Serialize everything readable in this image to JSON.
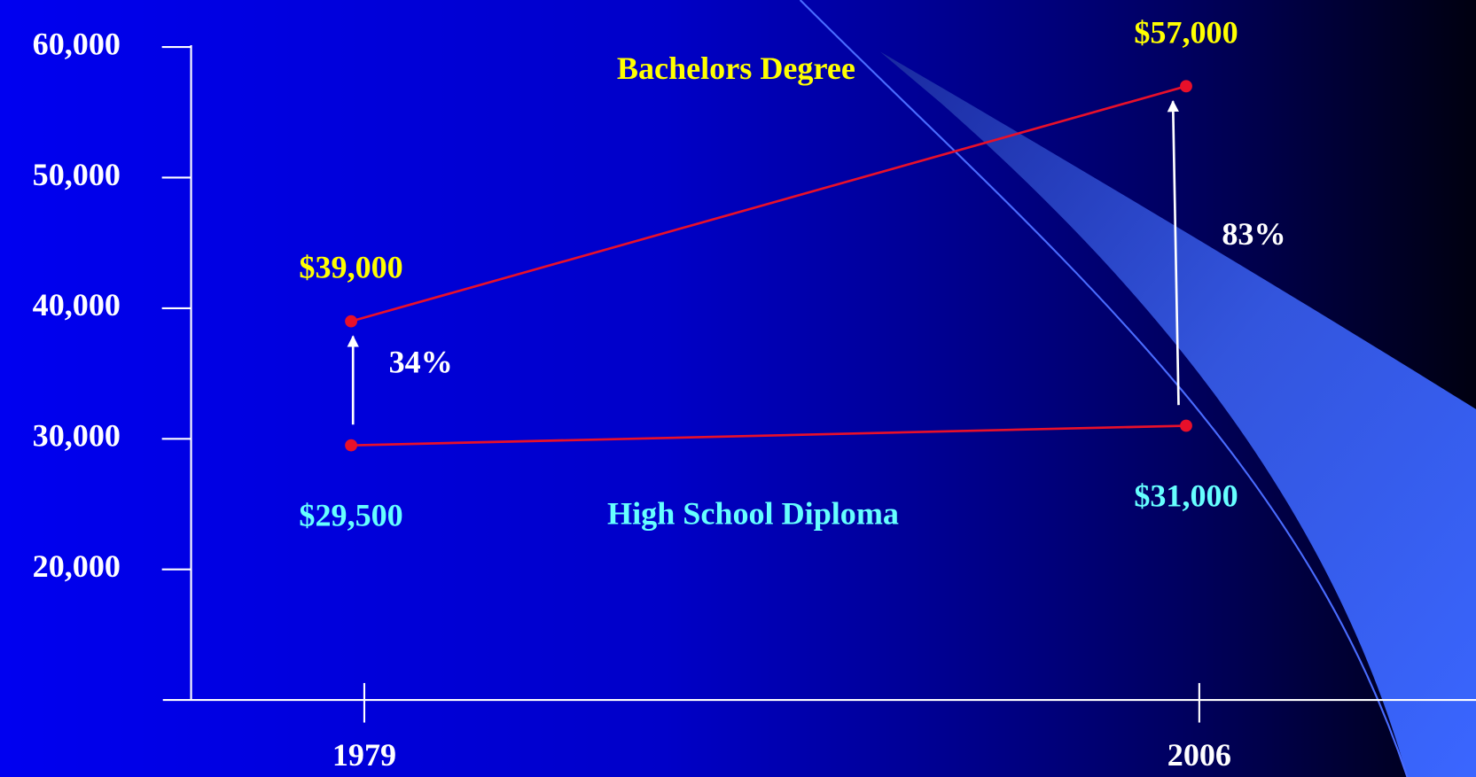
{
  "chart_data": {
    "type": "line",
    "categories": [
      "1979",
      "2006"
    ],
    "series": [
      {
        "name": "Bachelors Degree",
        "color": "#e8102a",
        "label_color": "#ffff00",
        "values": [
          39000,
          57000
        ],
        "value_labels": [
          "$39,000",
          "$57,000"
        ]
      },
      {
        "name": "High School Diploma",
        "color": "#e8102a",
        "label_color": "#66ffff",
        "values": [
          29500,
          31000
        ],
        "value_labels": [
          "$29,500",
          "$31,000"
        ]
      }
    ],
    "annotations": [
      "34%",
      "83%"
    ],
    "ylim": [
      10000,
      60000
    ],
    "yticks": [
      {
        "value": 20000,
        "label": "20,000"
      },
      {
        "value": 30000,
        "label": "30,000"
      },
      {
        "value": 40000,
        "label": "40,000"
      },
      {
        "value": 50000,
        "label": "50,000"
      },
      {
        "value": 60000,
        "label": "60,000"
      }
    ]
  }
}
